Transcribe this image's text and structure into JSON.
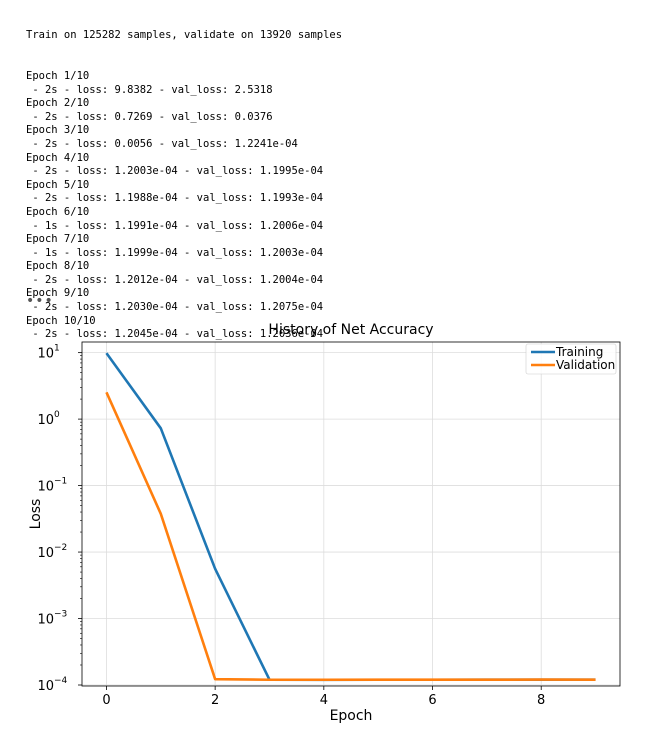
{
  "log": {
    "header": "Train on 125282 samples, validate on 13920 samples",
    "epochs": [
      {
        "label": "Epoch 1/10",
        "stats": " - 2s - loss: 9.8382 - val_loss: 2.5318"
      },
      {
        "label": "Epoch 2/10",
        "stats": " - 2s - loss: 0.7269 - val_loss: 0.0376"
      },
      {
        "label": "Epoch 3/10",
        "stats": " - 2s - loss: 0.0056 - val_loss: 1.2241e-04"
      },
      {
        "label": "Epoch 4/10",
        "stats": " - 2s - loss: 1.2003e-04 - val_loss: 1.1995e-04"
      },
      {
        "label": "Epoch 5/10",
        "stats": " - 2s - loss: 1.1988e-04 - val_loss: 1.1993e-04"
      },
      {
        "label": "Epoch 6/10",
        "stats": " - 1s - loss: 1.1991e-04 - val_loss: 1.2006e-04"
      },
      {
        "label": "Epoch 7/10",
        "stats": " - 1s - loss: 1.1999e-04 - val_loss: 1.2003e-04"
      },
      {
        "label": "Epoch 8/10",
        "stats": " - 2s - loss: 1.2012e-04 - val_loss: 1.2004e-04"
      },
      {
        "label": "Epoch 9/10",
        "stats": " - 2s - loss: 1.2030e-04 - val_loss: 1.2075e-04"
      },
      {
        "label": "Epoch 10/10",
        "stats": " - 2s - loss: 1.2045e-04 - val_loss: 1.2036e-04"
      }
    ],
    "ellipsis": "•••"
  },
  "chart_data": {
    "type": "line",
    "title": "History of Net Accuracy",
    "xlabel": "Epoch",
    "ylabel": "Loss",
    "yscale": "log",
    "xlim": [
      -0.45,
      9.45
    ],
    "ylim": [
      0.0001,
      10
    ],
    "grid": true,
    "legend_position": "top-right",
    "x": [
      0,
      1,
      2,
      3,
      4,
      5,
      6,
      7,
      8,
      9
    ],
    "xticks": [
      0,
      2,
      4,
      6,
      8
    ],
    "yticks": [
      {
        "base": "10",
        "exp": "−4",
        "value": 0.0001
      },
      {
        "base": "10",
        "exp": "−3",
        "value": 0.001
      },
      {
        "base": "10",
        "exp": "−2",
        "value": 0.01
      },
      {
        "base": "10",
        "exp": "−1",
        "value": 0.1
      },
      {
        "base": "10",
        "exp": "0",
        "value": 1
      },
      {
        "base": "10",
        "exp": "1",
        "value": 10
      }
    ],
    "series": [
      {
        "name": "Training",
        "color": "#1f77b4",
        "values": [
          9.8382,
          0.7269,
          0.0056,
          0.00012003,
          0.00011988,
          0.00011991,
          0.00011999,
          0.00012012,
          0.0001203,
          0.00012045
        ]
      },
      {
        "name": "Validation",
        "color": "#ff7f0e",
        "values": [
          2.5318,
          0.0376,
          0.00012241,
          0.00011995,
          0.00011993,
          0.00012006,
          0.00012003,
          0.00012004,
          0.00012075,
          0.00012036
        ]
      }
    ]
  }
}
